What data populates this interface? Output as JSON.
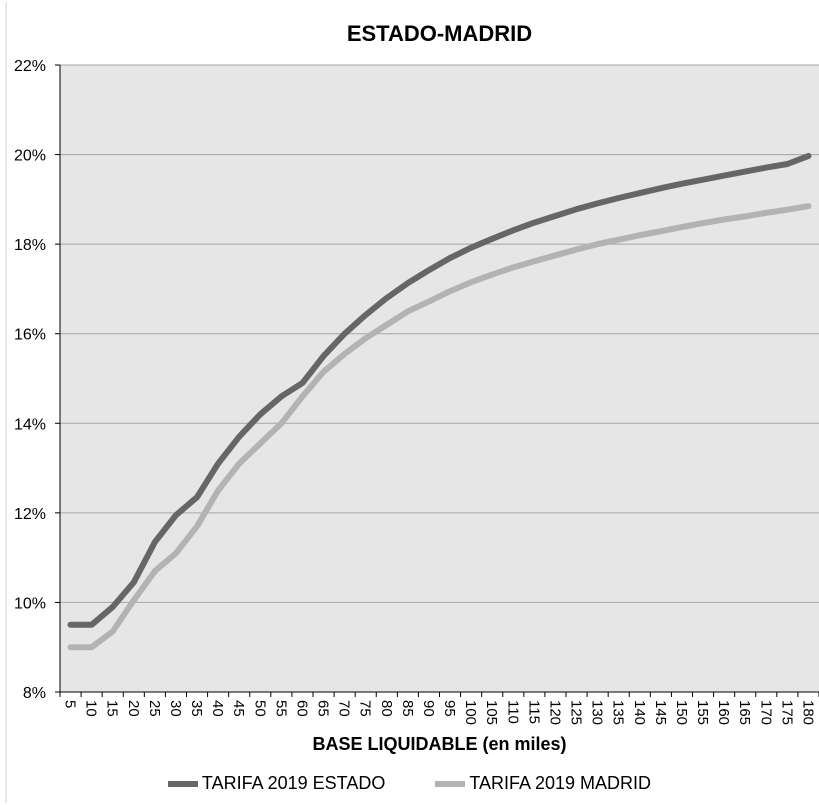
{
  "chart_data": {
    "type": "line",
    "title": "ESTADO-MADRID",
    "xlabel": "BASE LIQUIDABLE (en miles)",
    "ylabel": "",
    "x": [
      5,
      10,
      15,
      20,
      25,
      30,
      35,
      40,
      45,
      50,
      55,
      60,
      65,
      70,
      75,
      80,
      85,
      90,
      95,
      100,
      105,
      110,
      115,
      120,
      125,
      130,
      135,
      140,
      145,
      150,
      155,
      160,
      165,
      170,
      175,
      180
    ],
    "ylim": [
      8,
      22
    ],
    "yticks": [
      8,
      10,
      12,
      14,
      16,
      18,
      20,
      22
    ],
    "ytick_labels": [
      "8%",
      "10%",
      "12%",
      "14%",
      "16%",
      "18%",
      "20%",
      "22%"
    ],
    "grid": true,
    "legend_position": "bottom",
    "colors": {
      "plot_bg": "#e6e6e6",
      "grid": "#a6a6a6"
    },
    "series": [
      {
        "name": "TARIFA 2019 ESTADO",
        "color": "#666666",
        "values": [
          9.5,
          9.5,
          9.9,
          10.45,
          11.35,
          11.95,
          12.35,
          13.1,
          13.7,
          14.2,
          14.6,
          14.9,
          15.5,
          16.0,
          16.42,
          16.8,
          17.13,
          17.42,
          17.69,
          17.92,
          18.12,
          18.31,
          18.48,
          18.63,
          18.78,
          18.91,
          19.03,
          19.14,
          19.25,
          19.35,
          19.44,
          19.53,
          19.62,
          19.71,
          19.79,
          19.97
        ]
      },
      {
        "name": "TARIFA 2019 MADRID",
        "color": "#b3b3b3",
        "values": [
          9.0,
          9.0,
          9.35,
          10.05,
          10.7,
          11.1,
          11.7,
          12.5,
          13.1,
          13.55,
          14.0,
          14.6,
          15.15,
          15.55,
          15.9,
          16.2,
          16.5,
          16.72,
          16.95,
          17.15,
          17.32,
          17.48,
          17.62,
          17.75,
          17.88,
          18.0,
          18.1,
          18.2,
          18.29,
          18.38,
          18.47,
          18.55,
          18.62,
          18.7,
          18.77,
          18.85
        ]
      }
    ]
  }
}
